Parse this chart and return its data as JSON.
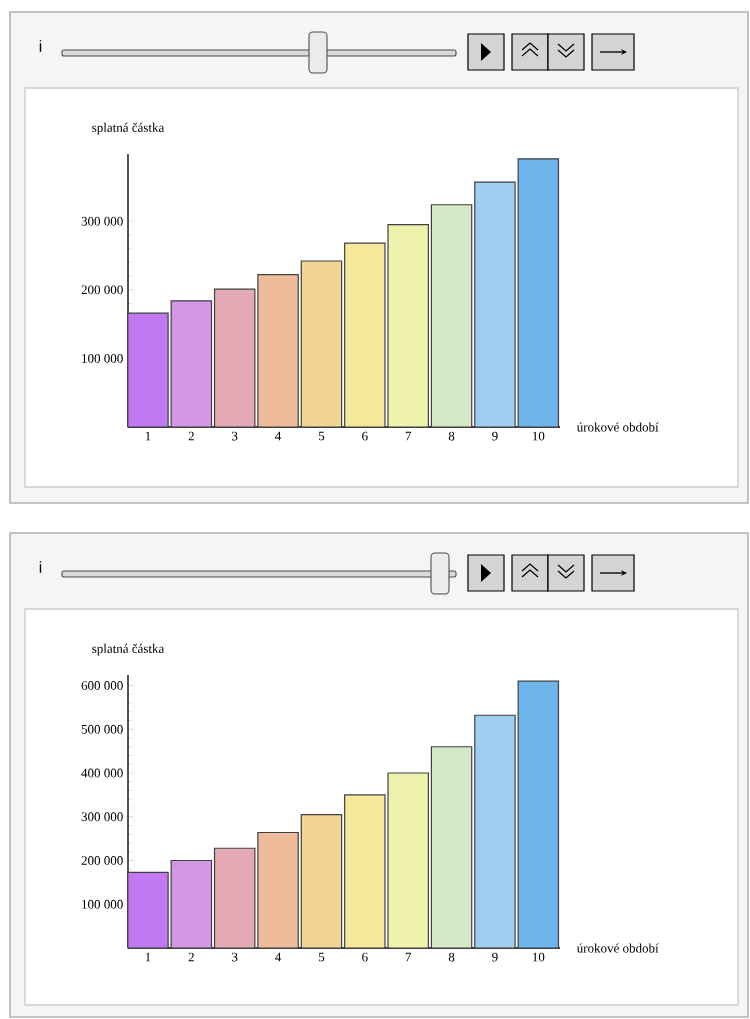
{
  "chart_data": [
    {
      "type": "bar",
      "xlabel": "úrokové období",
      "ylabel": "splatná částka",
      "annotations": [
        "i"
      ],
      "categories": [
        "1",
        "2",
        "3",
        "4",
        "5",
        "6",
        "7",
        "8",
        "9",
        "10"
      ],
      "values": [
        166000,
        184000,
        201000,
        222000,
        242000,
        268000,
        295000,
        324000,
        357000,
        391000
      ],
      "colors": [
        "#c178f0",
        "#d397e6",
        "#e3a9b5",
        "#eebc9b",
        "#f2d494",
        "#f5e89a",
        "#eef2ac",
        "#d3e9c8",
        "#9fcff0",
        "#6cb4ea"
      ],
      "ylim": [
        0,
        398000
      ],
      "yticks": [
        {
          "value": 100000,
          "label": "100 000"
        },
        {
          "value": 200000,
          "label": "200 000"
        },
        {
          "value": 300000,
          "label": "300 000"
        }
      ]
    },
    {
      "type": "bar",
      "xlabel": "úrokové období",
      "ylabel": "splatná částka",
      "annotations": [
        "i"
      ],
      "categories": [
        "1",
        "2",
        "3",
        "4",
        "5",
        "6",
        "7",
        "8",
        "9",
        "10"
      ],
      "values": [
        173000,
        200000,
        228000,
        264000,
        305000,
        350000,
        400000,
        460000,
        532000,
        610000
      ],
      "colors": [
        "#c178f0",
        "#d397e6",
        "#e3a9b5",
        "#eebc9b",
        "#f2d494",
        "#f5e89a",
        "#eef2ac",
        "#d3e9c8",
        "#9fcff0",
        "#6cb4ea"
      ],
      "ylim": [
        0,
        624000
      ],
      "yticks": [
        {
          "value": 100000,
          "label": "100 000"
        },
        {
          "value": 200000,
          "label": "200 000"
        },
        {
          "value": 300000,
          "label": "300 000"
        },
        {
          "value": 400000,
          "label": "400 000"
        },
        {
          "value": 500000,
          "label": "500 000"
        },
        {
          "value": 600000,
          "label": "600 000"
        }
      ]
    }
  ]
}
